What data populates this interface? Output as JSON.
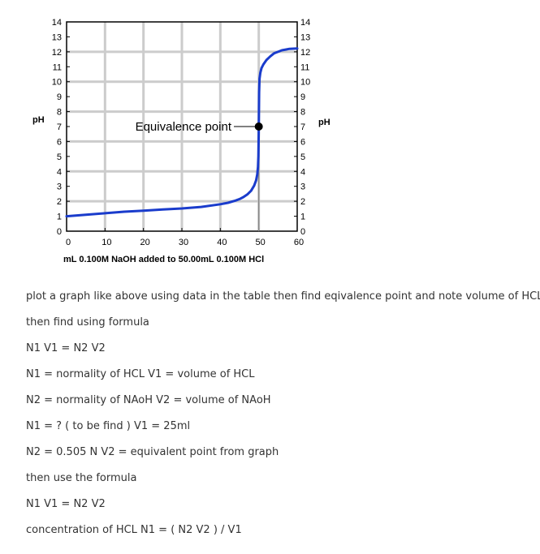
{
  "chart_data": {
    "type": "line",
    "xlabel": "mL 0.100M NaOH added to 50.00mL 0.100M HCl",
    "ylabel_left": "pH",
    "ylabel_right": "pH",
    "xlim": [
      0,
      60
    ],
    "ylim": [
      0,
      14
    ],
    "x_ticks": [
      "0",
      "10",
      "20",
      "30",
      "40",
      "50",
      "60"
    ],
    "y_ticks": [
      "0",
      "1",
      "2",
      "3",
      "4",
      "5",
      "6",
      "7",
      "8",
      "9",
      "10",
      "11",
      "12",
      "13",
      "14"
    ],
    "grid": true,
    "series_color": "#1a3ccc",
    "annotation": {
      "text": "Equivalence point",
      "x": 50,
      "y": 7
    },
    "x": [
      0,
      5,
      10,
      15,
      20,
      25,
      30,
      35,
      40,
      42,
      44,
      45,
      46,
      47,
      48,
      48.8,
      49.3,
      49.6,
      49.8,
      49.9,
      50,
      50.1,
      50.2,
      50.4,
      50.7,
      51.2,
      52,
      53,
      54,
      55,
      56,
      57,
      58,
      60
    ],
    "y": [
      1.0,
      1.1,
      1.2,
      1.3,
      1.37,
      1.45,
      1.52,
      1.62,
      1.8,
      1.9,
      2.05,
      2.15,
      2.28,
      2.45,
      2.7,
      3.05,
      3.4,
      3.8,
      4.3,
      5.0,
      7.0,
      9.3,
      10.2,
      10.6,
      10.9,
      11.15,
      11.45,
      11.7,
      11.9,
      12.0,
      12.1,
      12.15,
      12.2,
      12.22
    ]
  },
  "instructions": [
    "plot a graph like above using data in the table then find eqivalence point and note volume of HCL",
    "then find using formula",
    "N1 V1 = N2 V2",
    "N1 = normality of HCL V1 = volume of HCL",
    "N2 = normality of NAoH V2 = volume of NAoH",
    "N1 = ? ( to be find ) V1 = 25ml",
    "N2 = 0.505 N V2 = equivalent point from graph",
    "then use the formula",
    "N1 V1 = N2 V2",
    "concentration of HCL N1 = ( N2 V2 ) / V1"
  ]
}
